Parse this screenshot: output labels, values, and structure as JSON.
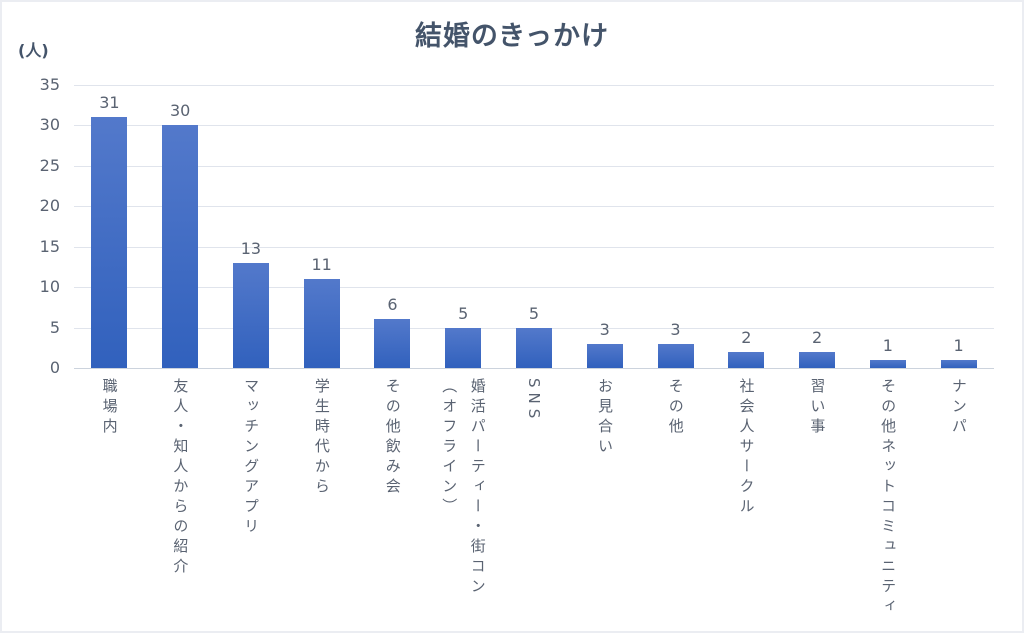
{
  "chart_data": {
    "type": "bar",
    "title": "結婚のきっかけ",
    "unit_label": "(人)",
    "xlabel": "",
    "ylabel": "(人)",
    "categories": [
      "職場内",
      "友人・知人からの紹介",
      "マッチングアプリ",
      "学生時代から",
      "その他飲み会",
      "婚活パーティー・街コン（オフライン）",
      "SNS",
      "お見合い",
      "その他",
      "社会人サークル",
      "習い事",
      "その他ネットコミュニティ",
      "ナンパ"
    ],
    "values": [
      31,
      30,
      13,
      11,
      6,
      5,
      5,
      3,
      3,
      2,
      2,
      1,
      1
    ],
    "ylim": [
      0,
      35
    ],
    "yticks": [
      0,
      5,
      10,
      15,
      20,
      25,
      30,
      35
    ],
    "grid": true,
    "legend_position": "none",
    "data_labels": true,
    "category_label_orientation": "vertical"
  },
  "style": {
    "background": "#ffffff",
    "border_color": "#ebedf2",
    "title_color": "#44546a",
    "label_color": "#5a6372",
    "gridline_color": "#e0e4ec",
    "axis_line_color": "#ccd3dd",
    "bar_gradient_top": "#5379cb",
    "bar_gradient_bottom": "#3161bd"
  }
}
